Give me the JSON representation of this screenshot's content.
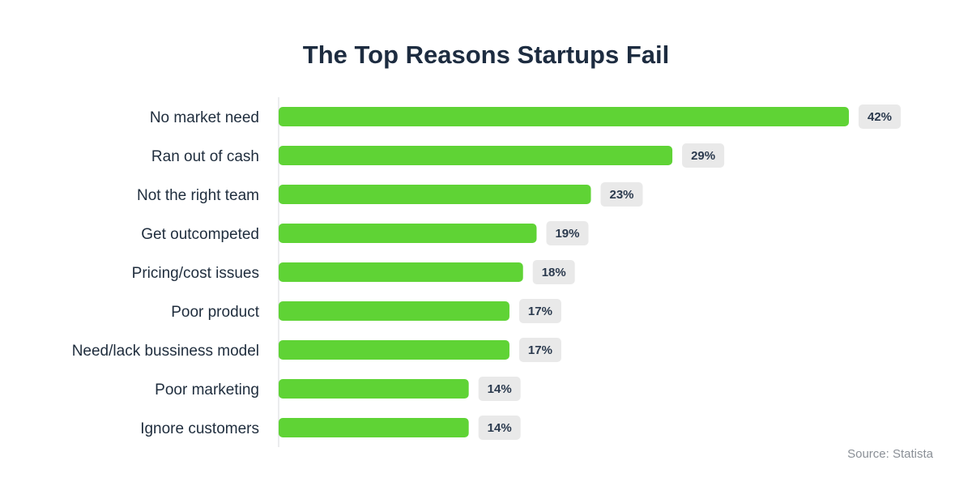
{
  "chart_data": {
    "type": "bar",
    "orientation": "horizontal",
    "title": "The Top Reasons Startups Fail",
    "categories": [
      "No market need",
      "Ran out of cash",
      "Not the right team",
      "Get outcompeted",
      "Pricing/cost issues",
      "Poor product",
      "Need/lack bussiness model",
      "Poor marketing",
      "Ignore customers"
    ],
    "values": [
      42,
      29,
      23,
      19,
      18,
      17,
      17,
      14,
      14
    ],
    "value_labels": [
      "42%",
      "29%",
      "23%",
      "19%",
      "18%",
      "17%",
      "17%",
      "14%",
      "14%"
    ],
    "unit": "%",
    "xlim": [
      0,
      42
    ],
    "grid": false,
    "legend": "none",
    "bar_color": "#5fd335",
    "label_box_color": "#e9e9e9"
  },
  "source": "Source: Statista"
}
